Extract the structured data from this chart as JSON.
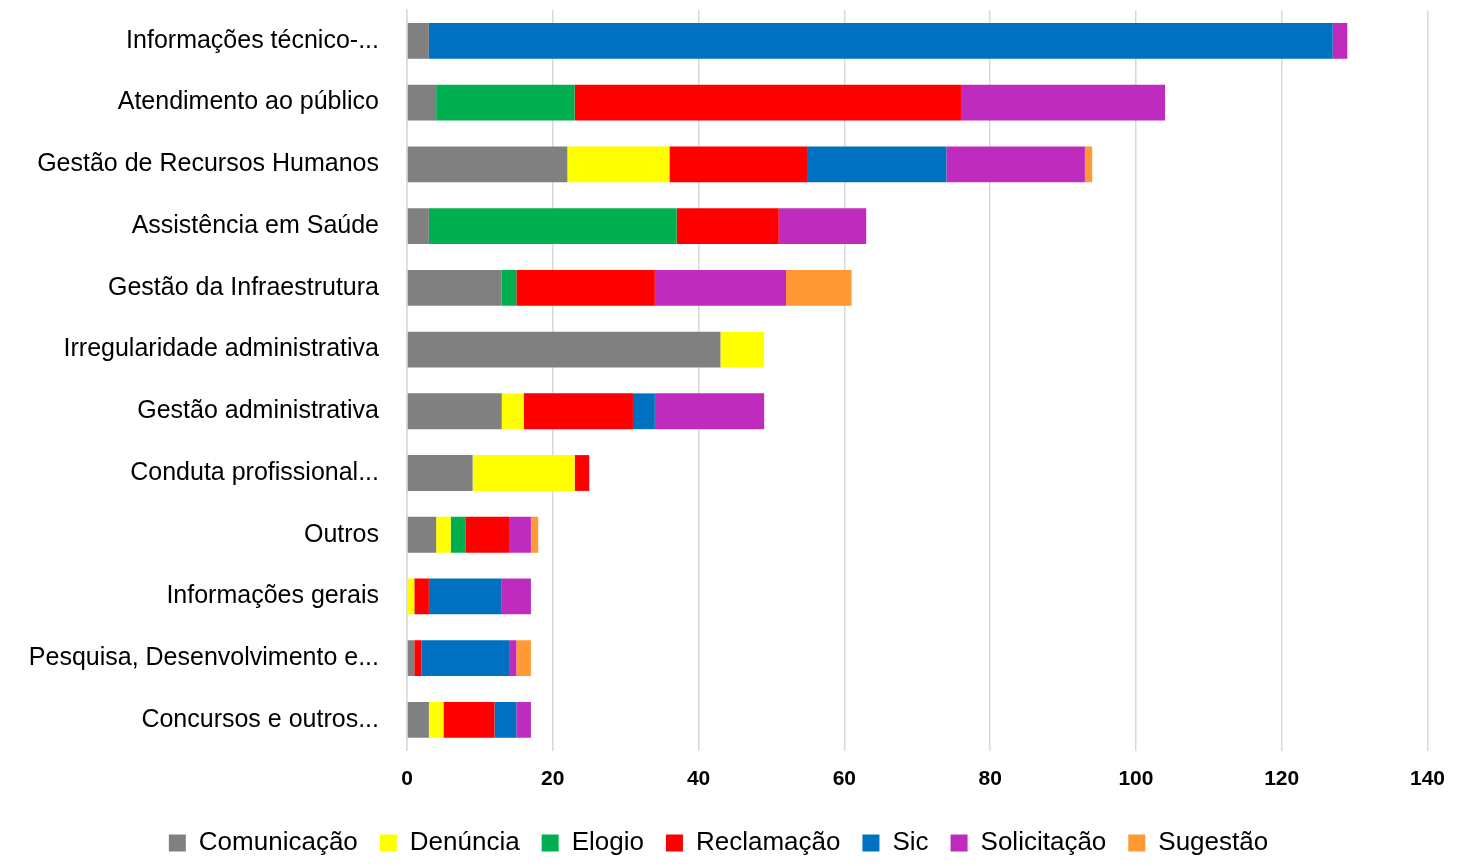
{
  "chart_data": {
    "type": "bar",
    "orientation": "horizontal",
    "stacked": true,
    "categories": [
      "Informações técnico-...",
      "Atendimento ao público",
      "Gestão de Recursos Humanos",
      "Assistência em Saúde",
      "Gestão da Infraestrutura",
      "Irregularidade administrativa",
      "Gestão administrativa",
      "Conduta profissional...",
      "Outros",
      "Informações gerais",
      "Pesquisa, Desenvolvimento e...",
      "Concursos e outros..."
    ],
    "series": [
      {
        "name": "Comunicação",
        "color": "#808080",
        "values": [
          3,
          4,
          22,
          3,
          13,
          43,
          13,
          9,
          4,
          null,
          1,
          3
        ]
      },
      {
        "name": "Denúncia",
        "color": "#ffff00",
        "values": [
          null,
          null,
          14,
          null,
          null,
          6,
          3,
          14,
          2,
          1,
          null,
          2
        ]
      },
      {
        "name": "Elogio",
        "color": "#00b050",
        "values": [
          null,
          19,
          null,
          34,
          2,
          null,
          null,
          null,
          2,
          null,
          null,
          null
        ]
      },
      {
        "name": "Reclamação",
        "color": "#ff0000",
        "values": [
          null,
          53,
          19,
          14,
          19,
          null,
          15,
          2,
          6,
          2,
          1,
          7
        ]
      },
      {
        "name": "Sic",
        "color": "#0070c0",
        "values": [
          124,
          null,
          19,
          null,
          null,
          null,
          3,
          null,
          null,
          10,
          12,
          3
        ]
      },
      {
        "name": "Solicitação",
        "color": "#bf2bbd",
        "values": [
          2,
          28,
          19,
          12,
          18,
          null,
          15,
          null,
          3,
          4,
          1,
          2
        ]
      },
      {
        "name": "Sugestão",
        "color": "#ff9933",
        "values": [
          null,
          null,
          1,
          null,
          9,
          null,
          null,
          null,
          1,
          null,
          2,
          null
        ]
      }
    ],
    "xlim": [
      0,
      140
    ],
    "xticks": [
      0,
      20,
      40,
      60,
      80,
      100,
      120,
      140
    ],
    "grid": "x",
    "legend": "bottom"
  }
}
